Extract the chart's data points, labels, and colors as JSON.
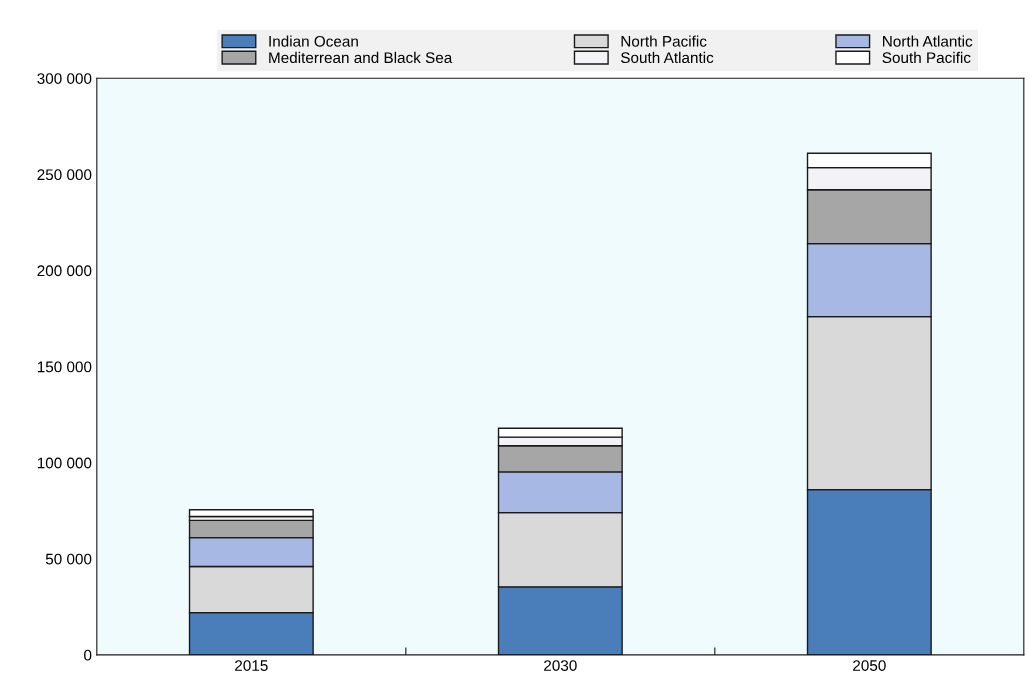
{
  "chart_data": {
    "type": "bar",
    "stacked": true,
    "categories": [
      "2015",
      "2030",
      "2050"
    ],
    "series": [
      {
        "name": "Indian Ocean",
        "color": "#4a7ebb",
        "values": [
          22000,
          35400,
          86000
        ]
      },
      {
        "name": "North Pacific",
        "color": "#d9d9d9",
        "values": [
          24000,
          38600,
          90000
        ]
      },
      {
        "name": "North Atlantic",
        "color": "#a6b8e3",
        "values": [
          15000,
          21200,
          38000
        ]
      },
      {
        "name": "Mediterrean and Black Sea",
        "color": "#a6a6a6",
        "values": [
          9000,
          13600,
          28000
        ]
      },
      {
        "name": "South Atlantic",
        "color": "#f2f2f7",
        "values": [
          2000,
          4500,
          11500
        ]
      },
      {
        "name": "South Pacific",
        "color": "#ffffff",
        "values": [
          3500,
          4600,
          7500
        ]
      }
    ],
    "ylim": [
      0,
      300000
    ],
    "yticks": [
      {
        "value": 0,
        "label": "0"
      },
      {
        "value": 50000,
        "label": "50 000"
      },
      {
        "value": 100000,
        "label": "100 000"
      },
      {
        "value": 150000,
        "label": "150 000"
      },
      {
        "value": 200000,
        "label": "200 000"
      },
      {
        "value": 250000,
        "label": "250 000"
      },
      {
        "value": 300000,
        "label": "300 000"
      }
    ],
    "grid": false,
    "legend": "top"
  }
}
